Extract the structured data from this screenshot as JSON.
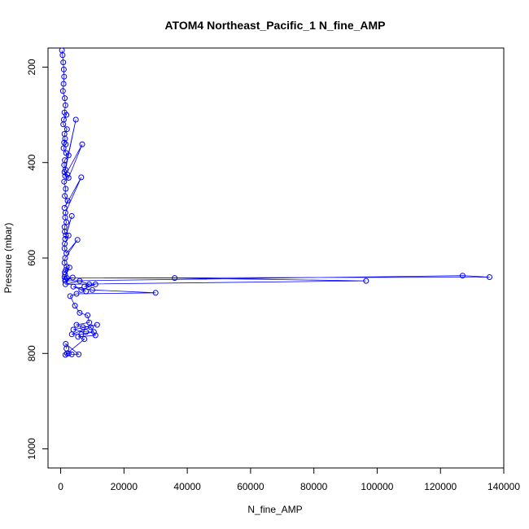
{
  "chart_data": {
    "type": "scatter",
    "title": "ATOM4 Northeast_Pacific_1 N_fine_AMP",
    "xlabel": "N_fine_AMP",
    "ylabel": "Pressure (mbar)",
    "xlim": [
      -4000,
      140000
    ],
    "ylim": [
      1040,
      160
    ],
    "y_reversed": true,
    "x_ticks": [
      0,
      20000,
      40000,
      60000,
      80000,
      100000,
      120000,
      140000
    ],
    "y_ticks": [
      200,
      400,
      600,
      800,
      1000
    ],
    "grid": false,
    "legend": "none",
    "color": "#0000ff",
    "series": [
      {
        "x": [
          400,
          600,
          800,
          1000,
          1100,
          900,
          700,
          1300,
          1500,
          1200,
          1800,
          1000,
          800,
          2000,
          1200,
          1400,
          1100,
          1600,
          900,
          1700,
          2500,
          1300,
          1100,
          1500,
          4800,
          1200,
          2100,
          1400,
          6800,
          2500,
          1100,
          1600,
          1300,
          2200,
          1200,
          6500,
          1500,
          1400,
          1800,
          1200,
          1300,
          1600,
          3500,
          1400,
          2500,
          1300,
          1200,
          1800,
          5300,
          1400,
          1200,
          1900,
          1600,
          1300,
          2800,
          1400,
          1200,
          1500,
          3800,
          1400,
          127000,
          135500,
          2000,
          36000,
          96500,
          1500,
          6000,
          9000,
          7500,
          11000,
          6500,
          8000,
          4000,
          10000,
          30000,
          5000,
          3000,
          4500,
          6000,
          8500,
          9000,
          5000,
          7000,
          11500,
          4000,
          8000,
          10500,
          6500,
          3500,
          9500,
          11000,
          5500,
          7500,
          2000,
          1500,
          2500,
          3500,
          5700,
          1600,
          1800
        ],
        "y": [
          165,
          175,
          190,
          205,
          220,
          235,
          250,
          265,
          280,
          295,
          300,
          310,
          320,
          330,
          340,
          350,
          358,
          362,
          370,
          380,
          385,
          395,
          405,
          415,
          310,
          420,
          425,
          428,
          362,
          432,
          440,
          455,
          470,
          480,
          495,
          431,
          505,
          515,
          525,
          535,
          545,
          552,
          512,
          560,
          553,
          570,
          580,
          590,
          562,
          600,
          610,
          618,
          625,
          630,
          620,
          635,
          640,
          645,
          641,
          648,
          637,
          640,
          642,
          642,
          648,
          655,
          648,
          655,
          660,
          655,
          667,
          670,
          660,
          667,
          673,
          675,
          680,
          700,
          715,
          720,
          735,
          740,
          745,
          740,
          750,
          755,
          755,
          760,
          760,
          745,
          762,
          765,
          770,
          800,
          803,
          800,
          802,
          802,
          780,
          790
        ]
      }
    ]
  }
}
